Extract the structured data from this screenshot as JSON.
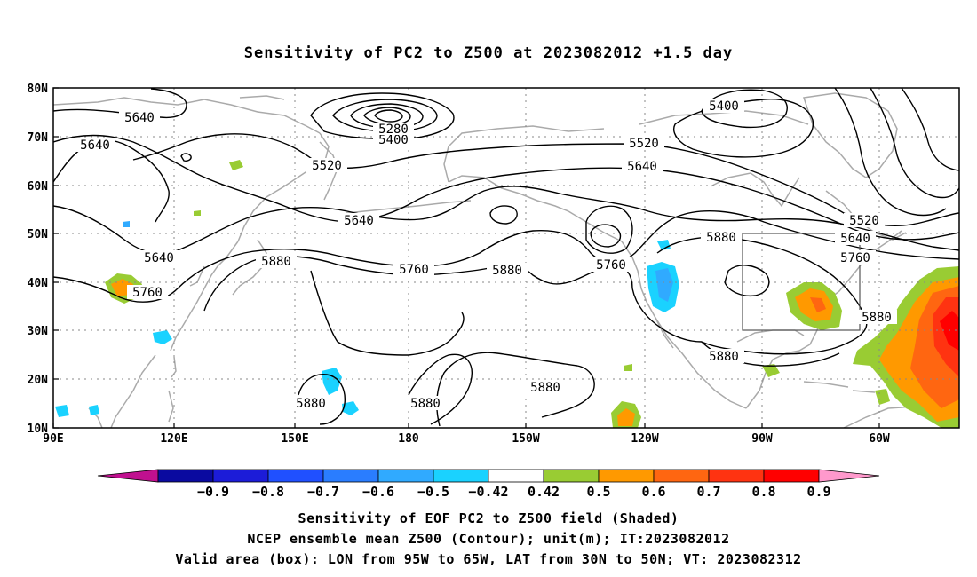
{
  "title": "Sensitivity of PC2 to Z500 at 2023082012 +1.5 day",
  "map": {
    "lat_ticks": [
      "80N",
      "70N",
      "60N",
      "50N",
      "40N",
      "30N",
      "20N",
      "10N"
    ],
    "lon_ticks": [
      "90E",
      "120E",
      "150E",
      "180",
      "150W",
      "120W",
      "90W",
      "60W"
    ],
    "contour_labels": [
      "5640",
      "5640",
      "5640",
      "5760",
      "5520",
      "5400",
      "5280",
      "5400",
      "5520",
      "5640",
      "5640",
      "5760",
      "5880",
      "5880",
      "5760",
      "5520",
      "5640",
      "5760",
      "5880",
      "5880",
      "5880",
      "5880",
      "5880",
      "5880"
    ],
    "valid_area_box": {
      "lon_from": "95W",
      "lon_to": "65W",
      "lat_from": "30N",
      "lat_to": "50N"
    }
  },
  "colorbar": {
    "labels": [
      "−0.9",
      "−0.8",
      "−0.7",
      "−0.6",
      "−0.5",
      "−0.42",
      "0.42",
      "0.5",
      "0.6",
      "0.7",
      "0.8",
      "0.9"
    ],
    "colors": [
      "#c0108f",
      "#0a0aa0",
      "#1c1cd8",
      "#2050ff",
      "#2a7dff",
      "#30aaff",
      "#1ad2ff",
      "#ffffff",
      "#99cc33",
      "#ff9900",
      "#ff6611",
      "#ff3311",
      "#ff0000",
      "#ff99cc"
    ]
  },
  "captions": {
    "line1": "Sensitivity of EOF PC2 to Z500 field (Shaded)",
    "line2": "NCEP ensemble mean Z500 (Contour); unit(m); IT:2023082012",
    "line3": "Valid area (box): LON from 95W to 65W, LAT from 30N to 50N; VT: 2023082312"
  }
}
